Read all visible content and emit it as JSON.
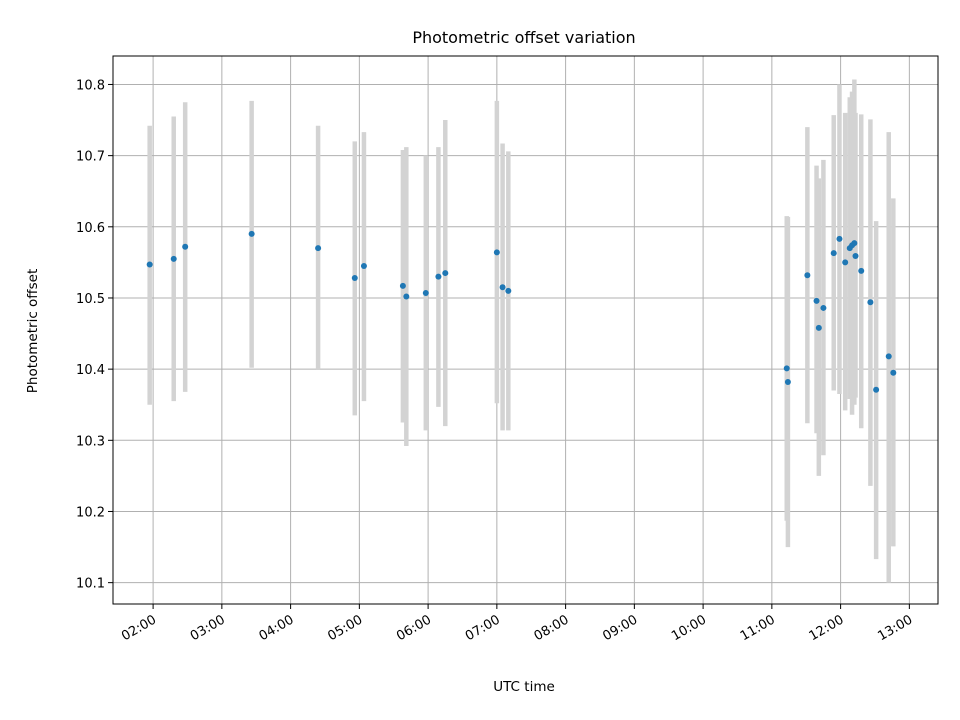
{
  "chart_data": {
    "type": "scatter",
    "title": "Photometric offset variation",
    "xlabel": "UTC time",
    "ylabel": "Photometric offset",
    "ylim": [
      10.07,
      10.84
    ],
    "xlim": [
      "01:25",
      "13:25"
    ],
    "grid": true,
    "xticks": [
      "02:00",
      "03:00",
      "04:00",
      "05:00",
      "06:00",
      "07:00",
      "08:00",
      "09:00",
      "10:00",
      "11:00",
      "12:00",
      "13:00"
    ],
    "yticks": [
      "10.1",
      "10.2",
      "10.3",
      "10.4",
      "10.5",
      "10.6",
      "10.7",
      "10.8"
    ],
    "colors": {
      "marker": "#1f77b4",
      "errorbar": "#d3d3d3",
      "grid": "#b0b0b0"
    },
    "points": [
      {
        "x": "01:57",
        "y": 10.547,
        "ylow": 10.35,
        "yhigh": 10.742
      },
      {
        "x": "02:18",
        "y": 10.555,
        "ylow": 10.355,
        "yhigh": 10.755
      },
      {
        "x": "02:28",
        "y": 10.572,
        "ylow": 10.368,
        "yhigh": 10.775
      },
      {
        "x": "03:26",
        "y": 10.59,
        "ylow": 10.402,
        "yhigh": 10.777
      },
      {
        "x": "04:24",
        "y": 10.57,
        "ylow": 10.4,
        "yhigh": 10.742
      },
      {
        "x": "04:56",
        "y": 10.528,
        "ylow": 10.335,
        "yhigh": 10.72
      },
      {
        "x": "05:04",
        "y": 10.545,
        "ylow": 10.355,
        "yhigh": 10.733
      },
      {
        "x": "05:38",
        "y": 10.517,
        "ylow": 10.325,
        "yhigh": 10.708
      },
      {
        "x": "05:41",
        "y": 10.502,
        "ylow": 10.292,
        "yhigh": 10.712
      },
      {
        "x": "05:58",
        "y": 10.507,
        "ylow": 10.314,
        "yhigh": 10.7
      },
      {
        "x": "06:09",
        "y": 10.53,
        "ylow": 10.347,
        "yhigh": 10.712
      },
      {
        "x": "06:15",
        "y": 10.535,
        "ylow": 10.32,
        "yhigh": 10.75
      },
      {
        "x": "07:00",
        "y": 10.564,
        "ylow": 10.352,
        "yhigh": 10.777
      },
      {
        "x": "07:05",
        "y": 10.515,
        "ylow": 10.314,
        "yhigh": 10.717
      },
      {
        "x": "07:10",
        "y": 10.51,
        "ylow": 10.314,
        "yhigh": 10.706
      },
      {
        "x": "11:13",
        "y": 10.401,
        "ylow": 10.187,
        "yhigh": 10.615
      },
      {
        "x": "11:14",
        "y": 10.382,
        "ylow": 10.15,
        "yhigh": 10.614
      },
      {
        "x": "11:31",
        "y": 10.532,
        "ylow": 10.324,
        "yhigh": 10.74
      },
      {
        "x": "11:39",
        "y": 10.496,
        "ylow": 10.31,
        "yhigh": 10.686
      },
      {
        "x": "11:41",
        "y": 10.458,
        "ylow": 10.25,
        "yhigh": 10.668
      },
      {
        "x": "11:45",
        "y": 10.486,
        "ylow": 10.279,
        "yhigh": 10.694
      },
      {
        "x": "11:54",
        "y": 10.563,
        "ylow": 10.37,
        "yhigh": 10.757
      },
      {
        "x": "11:59",
        "y": 10.583,
        "ylow": 10.365,
        "yhigh": 10.8
      },
      {
        "x": "12:04",
        "y": 10.55,
        "ylow": 10.342,
        "yhigh": 10.76
      },
      {
        "x": "12:08",
        "y": 10.57,
        "ylow": 10.358,
        "yhigh": 10.782
      },
      {
        "x": "12:10",
        "y": 10.574,
        "ylow": 10.336,
        "yhigh": 10.79
      },
      {
        "x": "12:12",
        "y": 10.577,
        "ylow": 10.35,
        "yhigh": 10.807
      },
      {
        "x": "12:13",
        "y": 10.559,
        "ylow": 10.36,
        "yhigh": 10.76
      },
      {
        "x": "12:18",
        "y": 10.538,
        "ylow": 10.317,
        "yhigh": 10.758
      },
      {
        "x": "12:26",
        "y": 10.494,
        "ylow": 10.236,
        "yhigh": 10.751
      },
      {
        "x": "12:31",
        "y": 10.371,
        "ylow": 10.133,
        "yhigh": 10.608
      },
      {
        "x": "12:42",
        "y": 10.418,
        "ylow": 10.1,
        "yhigh": 10.733
      },
      {
        "x": "12:46",
        "y": 10.395,
        "ylow": 10.151,
        "yhigh": 10.64
      }
    ]
  }
}
